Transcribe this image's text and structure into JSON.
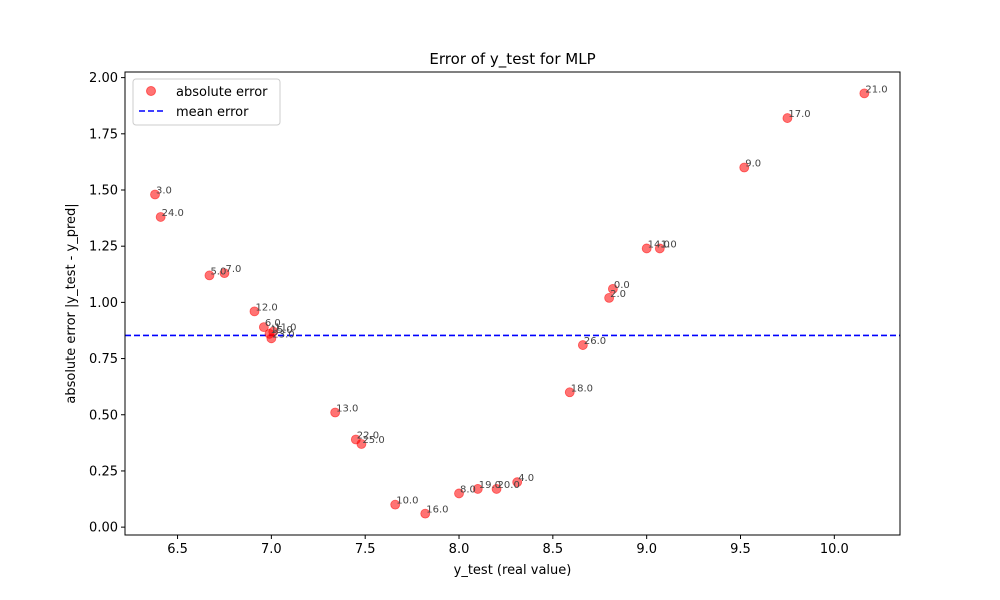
{
  "chart_data": {
    "type": "scatter",
    "title": "Error of y_test for MLP",
    "xlabel": "y_test (real value)",
    "ylabel": "absolute error |y_test - y_pred|",
    "xlim": [
      6.22,
      10.35
    ],
    "ylim": [
      -0.035,
      2.025
    ],
    "xticks": [
      6.5,
      7.0,
      7.5,
      8.0,
      8.5,
      9.0,
      9.5,
      10.0
    ],
    "xtick_labels": [
      "6.5",
      "7.0",
      "7.5",
      "8.0",
      "8.5",
      "9.0",
      "9.5",
      "10.0"
    ],
    "yticks": [
      0.0,
      0.25,
      0.5,
      0.75,
      1.0,
      1.25,
      1.5,
      1.75,
      2.0
    ],
    "ytick_labels": [
      "0.00",
      "0.25",
      "0.50",
      "0.75",
      "1.00",
      "1.25",
      "1.50",
      "1.75",
      "2.00"
    ],
    "grid": false,
    "legend_position": "top-left",
    "series": [
      {
        "name": "absolute error",
        "kind": "scatter",
        "color": "#ff0000",
        "points": [
          {
            "x": 8.82,
            "y": 1.06,
            "label": "0.0"
          },
          {
            "x": 9.07,
            "y": 1.24,
            "label": "1.0"
          },
          {
            "x": 8.8,
            "y": 1.02,
            "label": "2.0"
          },
          {
            "x": 6.38,
            "y": 1.48,
            "label": "3.0"
          },
          {
            "x": 8.31,
            "y": 0.2,
            "label": "4.0"
          },
          {
            "x": 6.67,
            "y": 1.12,
            "label": "5.0"
          },
          {
            "x": 6.96,
            "y": 0.89,
            "label": "6.0"
          },
          {
            "x": 6.75,
            "y": 1.13,
            "label": "7.0"
          },
          {
            "x": 8.0,
            "y": 0.15,
            "label": "8.0"
          },
          {
            "x": 9.52,
            "y": 1.6,
            "label": "9.0"
          },
          {
            "x": 7.66,
            "y": 0.1,
            "label": "10.0"
          },
          {
            "x": 7.01,
            "y": 0.87,
            "label": "11.0"
          },
          {
            "x": 6.91,
            "y": 0.96,
            "label": "12.0"
          },
          {
            "x": 7.34,
            "y": 0.51,
            "label": "13.0"
          },
          {
            "x": 9.0,
            "y": 1.24,
            "label": "14.0"
          },
          {
            "x": 6.99,
            "y": 0.86,
            "label": "15.0"
          },
          {
            "x": 7.82,
            "y": 0.06,
            "label": "16.0"
          },
          {
            "x": 9.75,
            "y": 1.82,
            "label": "17.0"
          },
          {
            "x": 8.59,
            "y": 0.6,
            "label": "18.0"
          },
          {
            "x": 8.1,
            "y": 0.17,
            "label": "19.0"
          },
          {
            "x": 8.2,
            "y": 0.17,
            "label": "20.0"
          },
          {
            "x": 10.16,
            "y": 1.93,
            "label": "21.0"
          },
          {
            "x": 7.45,
            "y": 0.39,
            "label": "22.0"
          },
          {
            "x": 7.0,
            "y": 0.84,
            "label": "23.0"
          },
          {
            "x": 6.41,
            "y": 1.38,
            "label": "24.0"
          },
          {
            "x": 7.48,
            "y": 0.37,
            "label": "25.0"
          },
          {
            "x": 8.66,
            "y": 0.81,
            "label": "26.0"
          }
        ]
      },
      {
        "name": "mean error",
        "kind": "hline",
        "color": "#0000ff",
        "y": 0.853
      }
    ]
  }
}
